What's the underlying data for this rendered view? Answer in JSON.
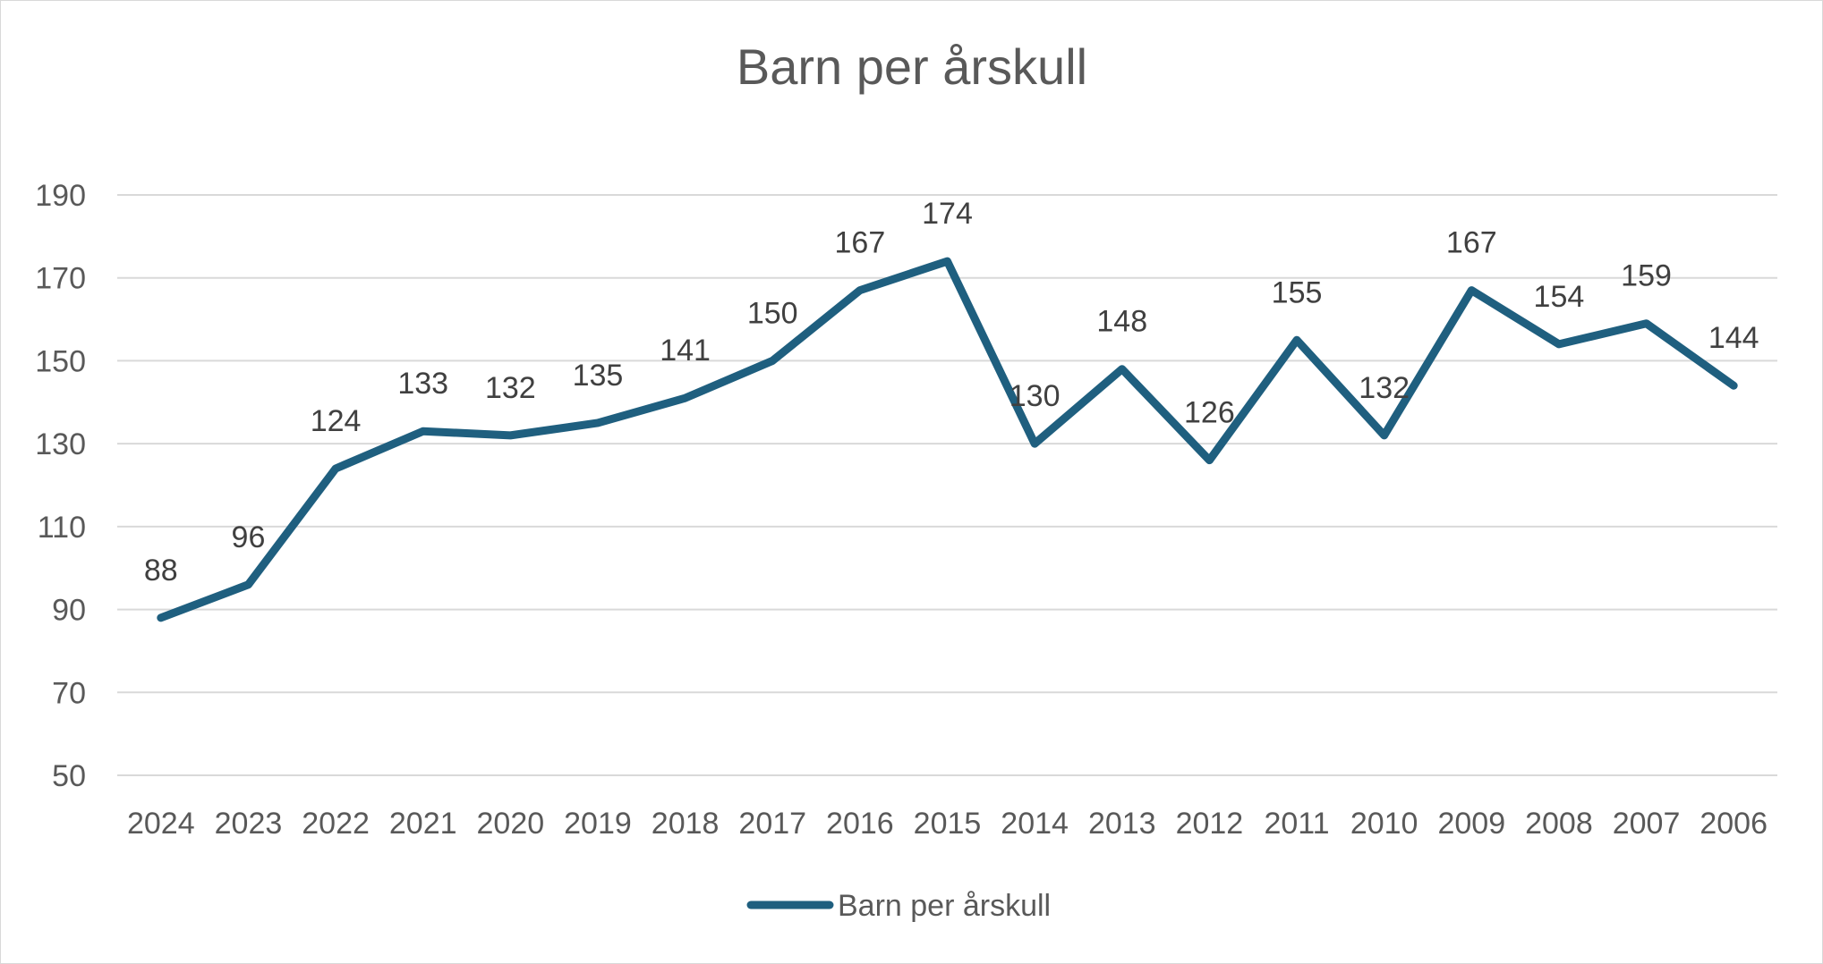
{
  "chart_data": {
    "type": "line",
    "title": "Barn per årskull",
    "categories": [
      "2024",
      "2023",
      "2022",
      "2021",
      "2020",
      "2019",
      "2018",
      "2017",
      "2016",
      "2015",
      "2014",
      "2013",
      "2012",
      "2011",
      "2010",
      "2009",
      "2008",
      "2007",
      "2006"
    ],
    "series": [
      {
        "name": "Barn per årskull",
        "values": [
          88,
          96,
          124,
          133,
          132,
          135,
          141,
          150,
          167,
          174,
          130,
          148,
          126,
          155,
          132,
          167,
          154,
          159,
          144
        ],
        "color": "#1f5f7f"
      }
    ],
    "yticks": [
      50,
      70,
      90,
      110,
      130,
      150,
      170,
      190
    ],
    "ylim": [
      50,
      190
    ],
    "grid": true,
    "legend": "bottom",
    "data_labels": true
  }
}
